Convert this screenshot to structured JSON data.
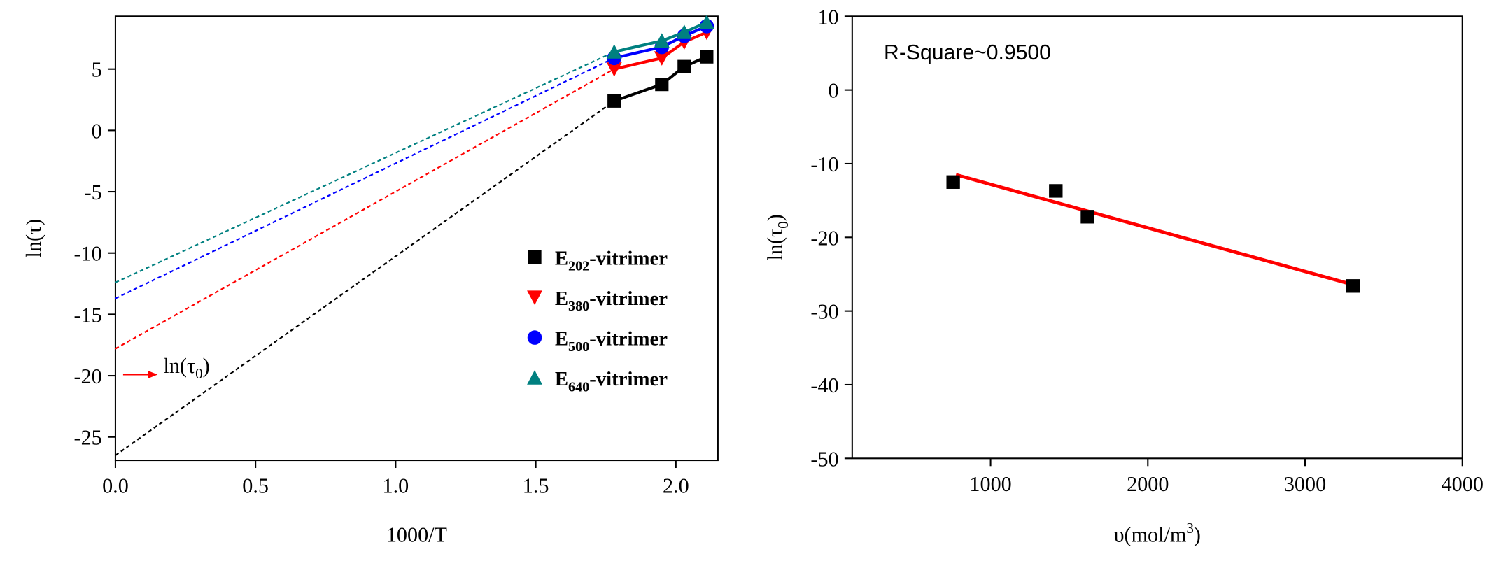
{
  "chart_data": [
    {
      "type": "scatter",
      "xlabel": "1000/T",
      "ylabel": "ln(τ)",
      "annotation": "ln(τ0)",
      "xlim": [
        0,
        2.15
      ],
      "ylim": [
        -26.9,
        9.3
      ],
      "xticks": [
        {
          "value": 0,
          "label": "0.0"
        },
        0.5,
        {
          "value": 1,
          "label": "1.0"
        },
        1.5,
        {
          "value": 2,
          "label": "2.0"
        }
      ],
      "yticks": [
        5,
        0,
        -5,
        -10,
        -15,
        -20,
        -25
      ],
      "series": [
        {
          "name": "E202-vitrimer",
          "color": "#000000",
          "marker": "square",
          "x": [
            1.78,
            1.95,
            2.03,
            2.11
          ],
          "values": [
            2.4,
            3.75,
            5.2,
            6.0
          ],
          "intercept": -26.5
        },
        {
          "name": "E380-vitrimer",
          "color": "#ff0000",
          "marker": "triangle-down",
          "x": [
            1.78,
            1.95,
            2.03,
            2.11
          ],
          "values": [
            5.0,
            5.9,
            7.2,
            8.0
          ],
          "intercept": -17.8
        },
        {
          "name": "E500-vitrimer",
          "color": "#0000ff",
          "marker": "circle",
          "x": [
            1.78,
            1.95,
            2.03,
            2.11
          ],
          "values": [
            5.9,
            6.8,
            7.7,
            8.5
          ],
          "intercept": -13.7
        },
        {
          "name": "E640-vitrimer",
          "color": "#008080",
          "marker": "triangle-up",
          "x": [
            1.78,
            1.95,
            2.03,
            2.11
          ],
          "values": [
            6.4,
            7.3,
            8.0,
            8.8
          ],
          "intercept": -12.4
        }
      ]
    },
    {
      "type": "scatter",
      "xlabel": "υ(mol/m3)",
      "ylabel": "ln(τ0)",
      "annotation": "R-Square~0.9500",
      "xlim": [
        120,
        4000
      ],
      "ylim": [
        -50,
        10
      ],
      "xticks": [
        1000,
        2000,
        3000,
        4000
      ],
      "yticks": [
        10,
        0,
        -10,
        -20,
        -30,
        -40,
        -50
      ],
      "series": [
        {
          "color": "#000000",
          "marker": "square",
          "x": [
            762,
            1415,
            1616,
            3305
          ],
          "values": [
            -12.5,
            -13.7,
            -17.2,
            -26.6
          ]
        }
      ],
      "fit": {
        "color": "#ff0000",
        "x": [
          780,
          3300
        ],
        "values": [
          -11.5,
          -26.4
        ]
      }
    }
  ]
}
